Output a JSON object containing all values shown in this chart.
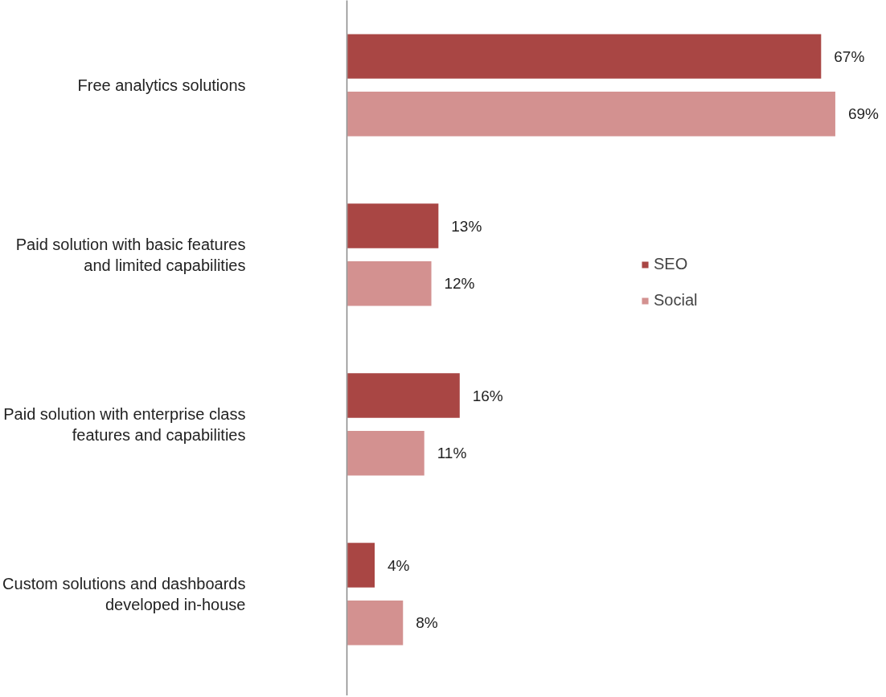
{
  "chart_data": {
    "type": "bar",
    "orientation": "horizontal",
    "categories": [
      "Free analytics solutions",
      "Paid solution with basic features and limited capabilities",
      "Paid solution with enterprise class features and capabilities",
      "Custom solutions and dashboards developed in-house"
    ],
    "series": [
      {
        "name": "SEO",
        "color": "#a94644",
        "values": [
          67,
          13,
          16,
          4
        ],
        "value_labels": [
          "67%",
          "13%",
          "16%",
          "4%"
        ]
      },
      {
        "name": "Social",
        "color": "#d39190",
        "values": [
          69,
          12,
          11,
          8
        ],
        "value_labels": [
          "69%",
          "12%",
          "11%",
          "8%"
        ]
      }
    ],
    "legend": "right",
    "grid": false
  }
}
